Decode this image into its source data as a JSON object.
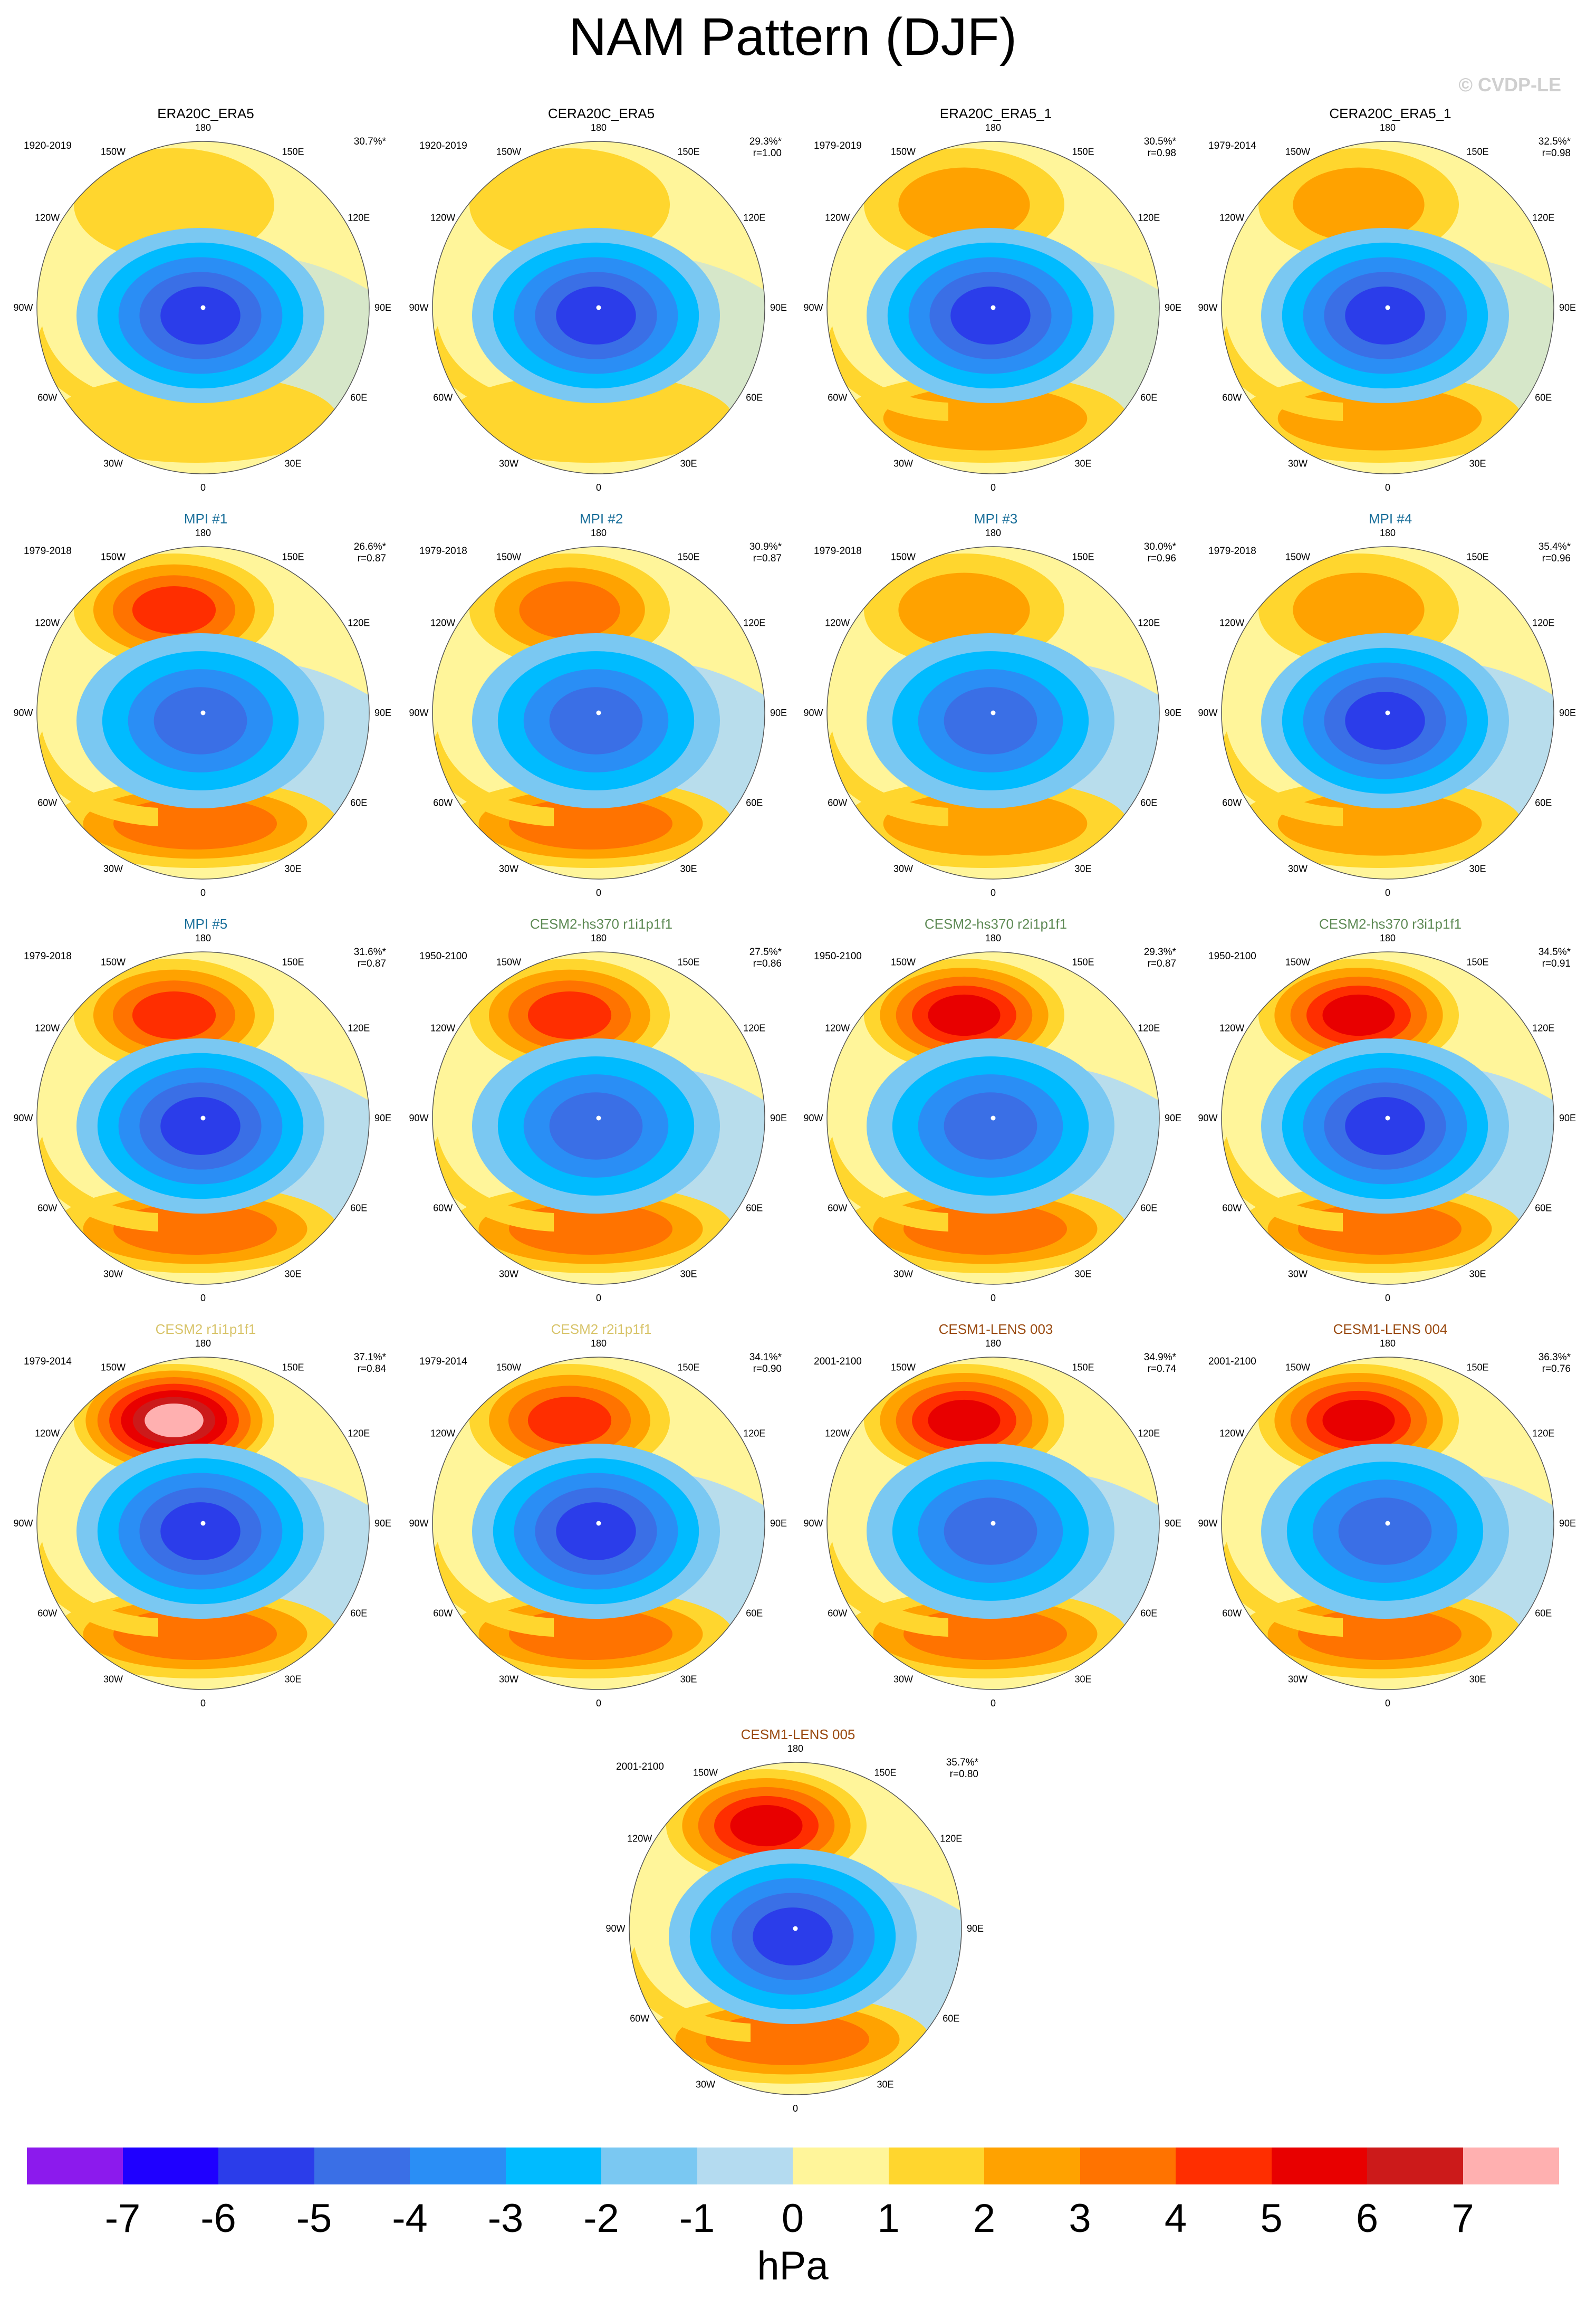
{
  "figure": {
    "title": "NAM Pattern (DJF)",
    "watermark": "© CVDP-LE",
    "units": "hPa"
  },
  "longitude_labels": [
    "180",
    "150E",
    "120E",
    "90E",
    "60E",
    "30E",
    "0",
    "30W",
    "60W",
    "90W",
    "120W",
    "150W"
  ],
  "colorbar": {
    "colors": [
      "#8c1aed",
      "#1f00ff",
      "#2b3dea",
      "#3a6fe6",
      "#2a8ef5",
      "#00bbff",
      "#7ac8f2",
      "#b4dbf0",
      "#fff59a",
      "#ffd62e",
      "#ffa200",
      "#ff7300",
      "#ff2e00",
      "#e80000",
      "#cc1a1a",
      "#ffb0b0"
    ],
    "labels": [
      "-7",
      "-6",
      "-5",
      "-4",
      "-3",
      "-2",
      "-1",
      "0",
      "1",
      "2",
      "3",
      "4",
      "5",
      "6",
      "7"
    ]
  },
  "colors": {
    "observation_title": "#000000",
    "mpi_title": "#1a6f9a",
    "cesm2_hs370_title": "#5e8a55",
    "cesm2_title": "#d8c46a",
    "cesm1_title": "#9a4a10"
  },
  "panels": [
    {
      "title": "ERA20C_ERA5",
      "period": "1920-2019",
      "pct": "30.7%*",
      "r": "",
      "title_color": "#000000",
      "pos_max": 2,
      "neg_min": -5
    },
    {
      "title": "CERA20C_ERA5",
      "period": "1920-2019",
      "pct": "29.3%*",
      "r": "r=1.00",
      "title_color": "#000000",
      "pos_max": 2,
      "neg_min": -5
    },
    {
      "title": "ERA20C_ERA5_1",
      "period": "1979-2019",
      "pct": "30.5%*",
      "r": "r=0.98",
      "title_color": "#000000",
      "pos_max": 3,
      "neg_min": -5
    },
    {
      "title": "CERA20C_ERA5_1",
      "period": "1979-2014",
      "pct": "32.5%*",
      "r": "r=0.98",
      "title_color": "#000000",
      "pos_max": 3,
      "neg_min": -5
    },
    {
      "title": "MPI #1",
      "period": "1979-2018",
      "pct": "26.6%*",
      "r": "r=0.87",
      "title_color": "#1a6f9a",
      "pos_max": 5,
      "neg_min": -4
    },
    {
      "title": "MPI #2",
      "period": "1979-2018",
      "pct": "30.9%*",
      "r": "r=0.87",
      "title_color": "#1a6f9a",
      "pos_max": 4,
      "neg_min": -4
    },
    {
      "title": "MPI #3",
      "period": "1979-2018",
      "pct": "30.0%*",
      "r": "r=0.96",
      "title_color": "#1a6f9a",
      "pos_max": 3,
      "neg_min": -4
    },
    {
      "title": "MPI #4",
      "period": "1979-2018",
      "pct": "35.4%*",
      "r": "r=0.96",
      "title_color": "#1a6f9a",
      "pos_max": 3,
      "neg_min": -5
    },
    {
      "title": "MPI #5",
      "period": "1979-2018",
      "pct": "31.6%*",
      "r": "r=0.87",
      "title_color": "#1a6f9a",
      "pos_max": 5,
      "neg_min": -5
    },
    {
      "title": "CESM2-hs370 r1i1p1f1",
      "period": "1950-2100",
      "pct": "27.5%*",
      "r": "r=0.86",
      "title_color": "#5e8a55",
      "pos_max": 5,
      "neg_min": -4
    },
    {
      "title": "CESM2-hs370 r2i1p1f1",
      "period": "1950-2100",
      "pct": "29.3%*",
      "r": "r=0.87",
      "title_color": "#5e8a55",
      "pos_max": 6,
      "neg_min": -4
    },
    {
      "title": "CESM2-hs370 r3i1p1f1",
      "period": "1950-2100",
      "pct": "34.5%*",
      "r": "r=0.91",
      "title_color": "#5e8a55",
      "pos_max": 6,
      "neg_min": -5
    },
    {
      "title": "CESM2 r1i1p1f1",
      "period": "1979-2014",
      "pct": "37.1%*",
      "r": "r=0.84",
      "title_color": "#d8c46a",
      "pos_max": 8,
      "neg_min": -5
    },
    {
      "title": "CESM2 r2i1p1f1",
      "period": "1979-2014",
      "pct": "34.1%*",
      "r": "r=0.90",
      "title_color": "#d8c46a",
      "pos_max": 5,
      "neg_min": -5
    },
    {
      "title": "CESM1-LENS 003",
      "period": "2001-2100",
      "pct": "34.9%*",
      "r": "r=0.74",
      "title_color": "#9a4a10",
      "pos_max": 6,
      "neg_min": -4
    },
    {
      "title": "CESM1-LENS 004",
      "period": "2001-2100",
      "pct": "36.3%*",
      "r": "r=0.76",
      "title_color": "#9a4a10",
      "pos_max": 6,
      "neg_min": -4
    },
    {
      "title": "CESM1-LENS 005",
      "period": "2001-2100",
      "pct": "35.7%*",
      "r": "r=0.80",
      "title_color": "#9a4a10",
      "pos_max": 6,
      "neg_min": -5
    }
  ]
}
